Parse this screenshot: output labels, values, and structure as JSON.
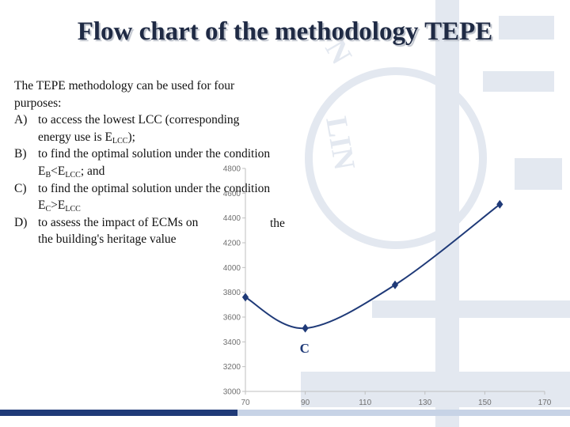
{
  "slide": {
    "title": "Flow chart of the methodology TEPE",
    "intro": "The TEPE methodology can be used for four purposes:",
    "items": [
      {
        "label": "A)",
        "text_parts": [
          "to access the lowest LCC (corresponding energy use is E",
          "LCC",
          ");"
        ]
      },
      {
        "label": "B)",
        "text_parts": [
          "to find the optimal solution under the condition E",
          "B",
          "<E",
          "LCC",
          "; and"
        ]
      },
      {
        "label": "C)",
        "text_parts": [
          "to find the optimal solution under the condition E",
          "C",
          ">E",
          "LCC"
        ]
      },
      {
        "label": "D)",
        "text_parts": [
          "to assess the impact of ECMs on",
          "the building's heritage value"
        ]
      }
    ],
    "stray_word": "the"
  },
  "colors": {
    "title": "#1f2a44",
    "series": "#1f3a78",
    "watermark": "#e3e8f0",
    "bottom_bar_dark": "#1f3a78",
    "bottom_bar_light": "#c7d3e6"
  },
  "chart_data": {
    "type": "line",
    "x": [
      70,
      90,
      120,
      155
    ],
    "series": [
      {
        "name": "",
        "values": [
          3760,
          3510,
          3860,
          4510
        ]
      }
    ],
    "annotation": {
      "text": "C",
      "x": 90,
      "y": 3510
    },
    "x_ticks": [
      "70",
      "90",
      "110",
      "130",
      "150",
      "170"
    ],
    "x_tick_values": [
      70,
      90,
      110,
      130,
      150,
      170
    ],
    "y_ticks": [
      "3000",
      "3200",
      "3400",
      "3600",
      "3800",
      "4000",
      "4200",
      "4400",
      "4600",
      "4800"
    ],
    "y_tick_values": [
      3000,
      3200,
      3400,
      3600,
      3800,
      4000,
      4200,
      4400,
      4600,
      4800
    ],
    "xlim": [
      70,
      170
    ],
    "ylim": [
      3000,
      4800
    ],
    "grid": false,
    "marker": "diamond",
    "smooth": true
  }
}
